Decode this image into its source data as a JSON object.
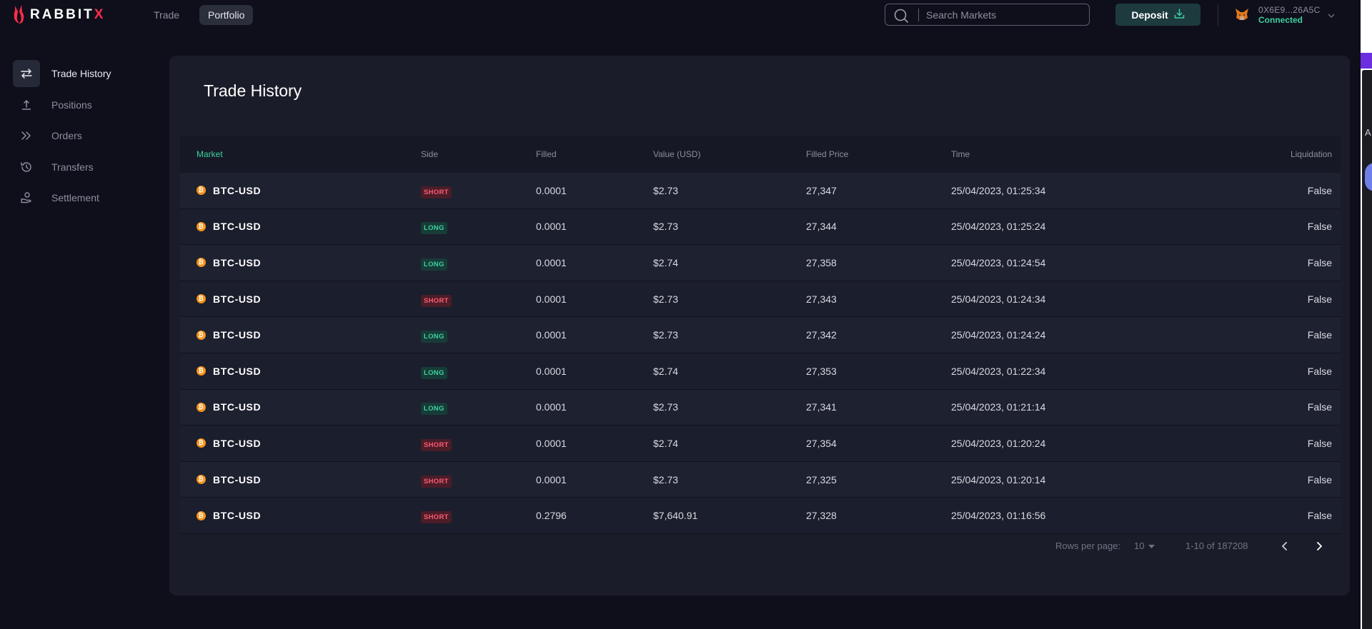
{
  "brand": {
    "logo_text_main": "RABBIT",
    "logo_text_x": "X"
  },
  "nav": {
    "tabs": [
      {
        "label": "Trade"
      },
      {
        "label": "Portfolio"
      }
    ]
  },
  "search": {
    "placeholder": "Search Markets"
  },
  "deposit": {
    "label": "Deposit"
  },
  "wallet": {
    "address": "0X6E9...26A5C",
    "status": "Connected"
  },
  "sidebar": {
    "items": [
      {
        "label": "Trade History",
        "icon": "swap-arrows-icon"
      },
      {
        "label": "Positions",
        "icon": "upload-icon"
      },
      {
        "label": "Orders",
        "icon": "double-chevron-right-icon"
      },
      {
        "label": "Transfers",
        "icon": "history-clock-icon"
      },
      {
        "label": "Settlement",
        "icon": "hand-coin-icon"
      }
    ]
  },
  "main": {
    "title": "Trade History",
    "table": {
      "headers": {
        "market": "Market",
        "side": "Side",
        "filled": "Filled",
        "value": "Value (USD)",
        "filled_price": "Filled Price",
        "time": "Time",
        "liquidation": "Liquidation"
      },
      "rows": [
        {
          "market": "BTC-USD",
          "side": "SHORT",
          "filled": "0.0001",
          "value": "$2.73",
          "filled_price": "27,347",
          "time": "25/04/2023, 01:25:34",
          "liquidation": "False"
        },
        {
          "market": "BTC-USD",
          "side": "LONG",
          "filled": "0.0001",
          "value": "$2.73",
          "filled_price": "27,344",
          "time": "25/04/2023, 01:25:24",
          "liquidation": "False"
        },
        {
          "market": "BTC-USD",
          "side": "LONG",
          "filled": "0.0001",
          "value": "$2.74",
          "filled_price": "27,358",
          "time": "25/04/2023, 01:24:54",
          "liquidation": "False"
        },
        {
          "market": "BTC-USD",
          "side": "SHORT",
          "filled": "0.0001",
          "value": "$2.73",
          "filled_price": "27,343",
          "time": "25/04/2023, 01:24:34",
          "liquidation": "False"
        },
        {
          "market": "BTC-USD",
          "side": "LONG",
          "filled": "0.0001",
          "value": "$2.73",
          "filled_price": "27,342",
          "time": "25/04/2023, 01:24:24",
          "liquidation": "False"
        },
        {
          "market": "BTC-USD",
          "side": "LONG",
          "filled": "0.0001",
          "value": "$2.74",
          "filled_price": "27,353",
          "time": "25/04/2023, 01:22:34",
          "liquidation": "False"
        },
        {
          "market": "BTC-USD",
          "side": "LONG",
          "filled": "0.0001",
          "value": "$2.73",
          "filled_price": "27,341",
          "time": "25/04/2023, 01:21:14",
          "liquidation": "False"
        },
        {
          "market": "BTC-USD",
          "side": "SHORT",
          "filled": "0.0001",
          "value": "$2.74",
          "filled_price": "27,354",
          "time": "25/04/2023, 01:20:24",
          "liquidation": "False"
        },
        {
          "market": "BTC-USD",
          "side": "SHORT",
          "filled": "0.0001",
          "value": "$2.73",
          "filled_price": "27,325",
          "time": "25/04/2023, 01:20:14",
          "liquidation": "False"
        },
        {
          "market": "BTC-USD",
          "side": "SHORT",
          "filled": "0.2796",
          "value": "$7,640.91",
          "filled_price": "27,328",
          "time": "25/04/2023, 01:16:56",
          "liquidation": "False"
        }
      ]
    },
    "pagination": {
      "rows_per_page_label": "Rows per page:",
      "rows_per_page": "10",
      "range": "1-10 of 187208"
    }
  },
  "edge_panel": {
    "letter": "A"
  },
  "colors": {
    "accent_green": "#3fd0a0",
    "short_red": "#ff5a73",
    "brand_red": "#ff2b4a",
    "bitcoin_orange": "#f7931a"
  }
}
